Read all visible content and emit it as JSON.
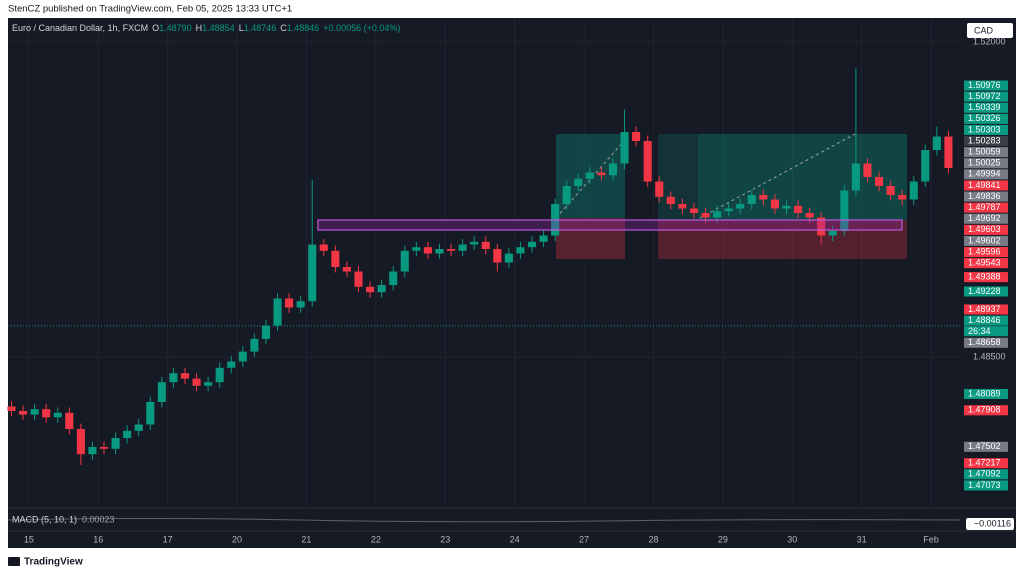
{
  "header": {
    "publisher": "StenCZ published on TradingView.com, Feb 05, 2025 13:33 UTC+1",
    "brand": "TradingView"
  },
  "legend": {
    "symbol": "Euro / Canadian Dollar, 1h, FXCM",
    "fields": [
      {
        "key": "O",
        "value": "1.48790"
      },
      {
        "key": "H",
        "value": "1.48854"
      },
      {
        "key": "L",
        "value": "1.48746"
      },
      {
        "key": "C",
        "value": "1.48846"
      }
    ],
    "change": "+0.00056 (+0.04%)"
  },
  "currency": "CAD",
  "countdown": "26:34",
  "macd": {
    "label": "MACD (5, 10, 1)",
    "value": 0.00023,
    "axis_value": "−0.00116"
  },
  "price_labels": [
    {
      "value": 1.50976,
      "color": "#089981"
    },
    {
      "value": 1.50972,
      "color": "#089981"
    },
    {
      "value": 1.50339,
      "color": "#089981"
    },
    {
      "value": 1.50326,
      "color": "#089981"
    },
    {
      "value": 1.50303,
      "color": "#089981"
    },
    {
      "value": 1.50283,
      "color": "#3a3d46"
    },
    {
      "value": 1.50059,
      "color": "#787b86"
    },
    {
      "value": 1.50025,
      "color": "#787b86"
    },
    {
      "value": 1.49994,
      "color": "#787b86"
    },
    {
      "value": 1.49841,
      "color": "#f23645"
    },
    {
      "value": 1.49836,
      "color": "#787b86"
    },
    {
      "value": 1.49787,
      "color": "#f23645"
    },
    {
      "value": 1.49692,
      "color": "#787b86"
    },
    {
      "value": 1.49603,
      "color": "#f23645"
    },
    {
      "value": 1.49602,
      "color": "#787b86"
    },
    {
      "value": 1.49596,
      "color": "#f23645"
    },
    {
      "value": 1.49543,
      "color": "#f23645"
    },
    {
      "value": 1.49388,
      "color": "#f23645"
    },
    {
      "value": 1.49228,
      "color": "#089981"
    },
    {
      "value": 1.48937,
      "color": "#f23645"
    },
    {
      "value": 1.48846,
      "color": "#089981"
    },
    {
      "value": 1.48658,
      "color": "#787b86"
    },
    {
      "value": 1.48089,
      "color": "#089981"
    },
    {
      "value": 1.47908,
      "color": "#f23645"
    },
    {
      "value": 1.47502,
      "color": "#787b86"
    },
    {
      "value": 1.47217,
      "color": "#f23645"
    },
    {
      "value": 1.47092,
      "color": "#089981"
    },
    {
      "value": 1.47073,
      "color": "#089981"
    }
  ],
  "chart_data": {
    "type": "candlestick",
    "up_color": "#089981",
    "down_color": "#f23645",
    "grid": true,
    "xlim": [
      -0.3,
      82
    ],
    "ylim": [
      1.46822,
      1.52267
    ],
    "xticks": [
      {
        "value": 1.5,
        "label": "15"
      },
      {
        "value": 7.5,
        "label": "16"
      },
      {
        "value": 13.5,
        "label": "17"
      },
      {
        "value": 19.5,
        "label": "20"
      },
      {
        "value": 25.5,
        "label": "21"
      },
      {
        "value": 31.5,
        "label": "22"
      },
      {
        "value": 37.5,
        "label": "23"
      },
      {
        "value": 43.5,
        "label": "24"
      },
      {
        "value": 49.5,
        "label": "27"
      },
      {
        "value": 55.5,
        "label": "28"
      },
      {
        "value": 61.5,
        "label": "29"
      },
      {
        "value": 67.5,
        "label": "30"
      },
      {
        "value": 73.5,
        "label": "31"
      },
      {
        "value": 79.5,
        "label": "Feb"
      }
    ],
    "yticks": [
      {
        "value": 1.52,
        "label": "1.52000"
      },
      {
        "value": 1.485,
        "label": "1.48500"
      }
    ],
    "ohlc": [
      [
        1.4795,
        1.4801,
        1.4784,
        1.479
      ],
      [
        1.479,
        1.4796,
        1.478,
        1.4786
      ],
      [
        1.4786,
        1.4798,
        1.478,
        1.4792
      ],
      [
        1.4792,
        1.4798,
        1.4777,
        1.4783
      ],
      [
        1.4783,
        1.4794,
        1.4777,
        1.4788
      ],
      [
        1.4788,
        1.4794,
        1.4764,
        1.477
      ],
      [
        1.477,
        1.4776,
        1.473,
        1.4742
      ],
      [
        1.4742,
        1.4756,
        1.4736,
        1.475
      ],
      [
        1.475,
        1.4756,
        1.4742,
        1.4748
      ],
      [
        1.4748,
        1.4766,
        1.4742,
        1.476
      ],
      [
        1.476,
        1.4774,
        1.4754,
        1.4768
      ],
      [
        1.4768,
        1.4781,
        1.4762,
        1.4775
      ],
      [
        1.4775,
        1.4806,
        1.4769,
        1.48
      ],
      [
        1.48,
        1.4828,
        1.4794,
        1.4822
      ],
      [
        1.4822,
        1.4838,
        1.4816,
        1.4832
      ],
      [
        1.4832,
        1.4838,
        1.482,
        1.4826
      ],
      [
        1.4826,
        1.4832,
        1.4812,
        1.4818
      ],
      [
        1.4818,
        1.4828,
        1.4812,
        1.4822
      ],
      [
        1.4822,
        1.4844,
        1.4816,
        1.4838
      ],
      [
        1.4838,
        1.4851,
        1.4832,
        1.4845
      ],
      [
        1.4845,
        1.4862,
        1.4839,
        1.4856
      ],
      [
        1.4856,
        1.4876,
        1.485,
        1.487
      ],
      [
        1.487,
        1.4891,
        1.4864,
        1.4885
      ],
      [
        1.4885,
        1.4921,
        1.4879,
        1.4915
      ],
      [
        1.4915,
        1.4921,
        1.4899,
        1.4905
      ],
      [
        1.4905,
        1.4918,
        1.4899,
        1.4912
      ],
      [
        1.4912,
        1.5047,
        1.4906,
        1.4975
      ],
      [
        1.4975,
        1.4981,
        1.4962,
        1.4968
      ],
      [
        1.4968,
        1.4974,
        1.4944,
        1.495
      ],
      [
        1.495,
        1.4956,
        1.4939,
        1.4945
      ],
      [
        1.4945,
        1.4951,
        1.4922,
        1.4928
      ],
      [
        1.4928,
        1.4934,
        1.4916,
        1.4922
      ],
      [
        1.4922,
        1.4936,
        1.4916,
        1.493
      ],
      [
        1.493,
        1.4951,
        1.4924,
        1.4945
      ],
      [
        1.4945,
        1.4974,
        1.4939,
        1.4968
      ],
      [
        1.4968,
        1.4978,
        1.4962,
        1.4972
      ],
      [
        1.4972,
        1.4978,
        1.4959,
        1.4965
      ],
      [
        1.4965,
        1.4976,
        1.4959,
        1.497
      ],
      [
        1.497,
        1.4976,
        1.4962,
        1.4968
      ],
      [
        1.4968,
        1.4981,
        1.4962,
        1.4975
      ],
      [
        1.4975,
        1.4984,
        1.4969,
        1.4978
      ],
      [
        1.4978,
        1.4984,
        1.4964,
        1.497
      ],
      [
        1.497,
        1.4976,
        1.4945,
        1.4955
      ],
      [
        1.4955,
        1.4971,
        1.4949,
        1.4965
      ],
      [
        1.4965,
        1.4978,
        1.4959,
        1.4972
      ],
      [
        1.4972,
        1.4984,
        1.4966,
        1.4978
      ],
      [
        1.4978,
        1.4991,
        1.4972,
        1.4985
      ],
      [
        1.4985,
        1.5026,
        1.4979,
        1.502
      ],
      [
        1.502,
        1.5046,
        1.5014,
        1.504
      ],
      [
        1.504,
        1.5054,
        1.5034,
        1.5048
      ],
      [
        1.5048,
        1.5061,
        1.5042,
        1.5055
      ],
      [
        1.5055,
        1.5061,
        1.5046,
        1.5052
      ],
      [
        1.5052,
        1.5071,
        1.5046,
        1.5065
      ],
      [
        1.5065,
        1.5125,
        1.5059,
        1.51
      ],
      [
        1.51,
        1.5106,
        1.5084,
        1.509
      ],
      [
        1.509,
        1.5096,
        1.5039,
        1.5045
      ],
      [
        1.5045,
        1.5051,
        1.5022,
        1.5028
      ],
      [
        1.5028,
        1.5034,
        1.5014,
        1.502
      ],
      [
        1.502,
        1.5026,
        1.5009,
        1.5015
      ],
      [
        1.5015,
        1.5021,
        1.5004,
        1.501
      ],
      [
        1.501,
        1.5016,
        1.4999,
        1.5005
      ],
      [
        1.5005,
        1.5018,
        1.4999,
        1.5012
      ],
      [
        1.5012,
        1.5021,
        1.5006,
        1.5015
      ],
      [
        1.5015,
        1.5026,
        1.5009,
        1.502
      ],
      [
        1.502,
        1.5036,
        1.5014,
        1.503
      ],
      [
        1.503,
        1.5036,
        1.5019,
        1.5025
      ],
      [
        1.5025,
        1.5031,
        1.5009,
        1.5015
      ],
      [
        1.5015,
        1.5024,
        1.5009,
        1.5018
      ],
      [
        1.5018,
        1.5024,
        1.5004,
        1.501
      ],
      [
        1.501,
        1.5016,
        1.4999,
        1.5005
      ],
      [
        1.5005,
        1.5011,
        1.4975,
        1.4985
      ],
      [
        1.4985,
        1.4996,
        1.4979,
        1.499
      ],
      [
        1.499,
        1.5041,
        1.4984,
        1.5035
      ],
      [
        1.5035,
        1.5171,
        1.5029,
        1.5065
      ],
      [
        1.5065,
        1.5071,
        1.5044,
        1.505
      ],
      [
        1.505,
        1.5056,
        1.5034,
        1.504
      ],
      [
        1.504,
        1.5046,
        1.5024,
        1.503
      ],
      [
        1.503,
        1.5036,
        1.5019,
        1.5025
      ],
      [
        1.5025,
        1.5051,
        1.5019,
        1.5045
      ],
      [
        1.5045,
        1.5086,
        1.5039,
        1.508
      ],
      [
        1.508,
        1.5106,
        1.5074,
        1.5095
      ],
      [
        1.5095,
        1.5101,
        1.5054,
        1.506
      ]
    ]
  }
}
